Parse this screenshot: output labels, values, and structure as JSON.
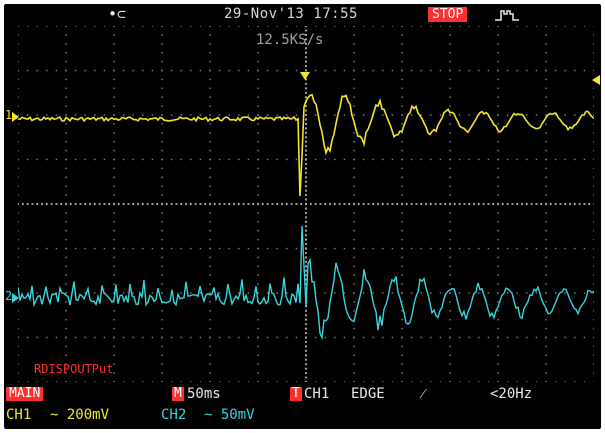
{
  "header": {
    "usb_icon": "usb-icon",
    "usb_glyph": "•⊂",
    "datetime": "29-Nov'13 17:55",
    "run_state": "STOP",
    "trigger_icon": "pulse-trigger-icon"
  },
  "sample_rate": "12.5KS/s",
  "channel_markers": {
    "ch1": "1",
    "ch2": "2"
  },
  "softkey_label": "RDISPOUTPut",
  "timebase": {
    "window": "MAIN",
    "mode": "M",
    "value": "50ms"
  },
  "trigger": {
    "mode": "T",
    "source": "CH1",
    "type": "EDGE",
    "slope": "⁄",
    "freq": "<20Hz"
  },
  "channels": [
    {
      "name": "CH1",
      "scale": "~ 200mV",
      "color": "#f3e62c"
    },
    {
      "name": "CH2",
      "scale": "~ 50mV",
      "color": "#36d6db"
    }
  ],
  "colors": {
    "background": "#000000",
    "ch1": "#f3e62c",
    "ch2": "#36d6db",
    "accent_red": "#ff3030",
    "grid": "#8a8a8a"
  }
}
